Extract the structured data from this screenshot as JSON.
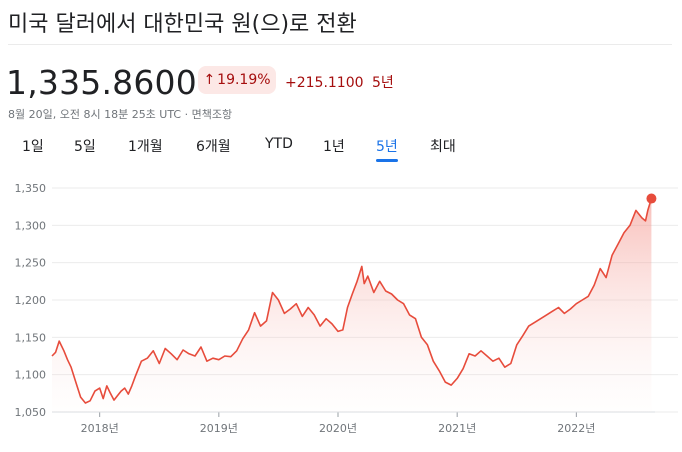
{
  "title": "미국 달러에서 대한민국 원(으)로 전환",
  "price": "1,335.8600",
  "percent_change": "19.19%",
  "percent_arrow_icon": "arrow-up-icon",
  "absolute_change": "+215.1100",
  "change_period": "5년",
  "timestamp": "8월 20일, 오전 8시 18분 25초 UTC · 면책조항",
  "tabs": [
    {
      "label": "1일"
    },
    {
      "label": "5일"
    },
    {
      "label": "1개월"
    },
    {
      "label": "6개월"
    },
    {
      "label": "YTD"
    },
    {
      "label": "1년"
    },
    {
      "label": "5년",
      "active": true
    },
    {
      "label": "최대"
    }
  ],
  "colors": {
    "line": "#e74c3c",
    "fill": "#fce8e6",
    "accent": "#1a73e8",
    "down": "#a50e0e"
  },
  "chart_data": {
    "type": "area",
    "title": "",
    "xlabel": "",
    "ylabel": "",
    "ylim": [
      1050,
      1350
    ],
    "yticks": [
      "1,350",
      "1,300",
      "1,250",
      "1,200",
      "1,150",
      "1,100",
      "1,050"
    ],
    "ytick_values": [
      1350,
      1300,
      1250,
      1200,
      1150,
      1100,
      1050
    ],
    "xticks": [
      "2018년",
      "2019년",
      "2020년",
      "2021년",
      "2022년"
    ],
    "xtick_values": [
      2018.0,
      2019.0,
      2020.0,
      2021.0,
      2022.0
    ],
    "grid": true,
    "series": [
      {
        "x": [
          2017.6,
          2017.63,
          2017.66,
          2017.7,
          2017.73,
          2017.76,
          2017.8,
          2017.84,
          2017.88,
          2017.92,
          2017.96,
          2018.0,
          2018.03,
          2018.06,
          2018.09,
          2018.12,
          2018.15,
          2018.18,
          2018.21,
          2018.24,
          2018.27,
          2018.3,
          2018.35,
          2018.4,
          2018.45,
          2018.5,
          2018.55,
          2018.6,
          2018.65,
          2018.7,
          2018.75,
          2018.8,
          2018.85,
          2018.9,
          2018.95,
          2019.0,
          2019.05,
          2019.1,
          2019.15,
          2019.2,
          2019.25,
          2019.3,
          2019.35,
          2019.4,
          2019.45,
          2019.5,
          2019.55,
          2019.6,
          2019.65,
          2019.7,
          2019.75,
          2019.8,
          2019.85,
          2019.9,
          2019.95,
          2020.0,
          2020.04,
          2020.08,
          2020.12,
          2020.16,
          2020.2,
          2020.22,
          2020.25,
          2020.3,
          2020.35,
          2020.4,
          2020.45,
          2020.5,
          2020.55,
          2020.6,
          2020.65,
          2020.7,
          2020.75,
          2020.8,
          2020.85,
          2020.9,
          2020.95,
          2021.0,
          2021.05,
          2021.1,
          2021.15,
          2021.2,
          2021.25,
          2021.3,
          2021.35,
          2021.4,
          2021.45,
          2021.5,
          2021.55,
          2021.6,
          2021.65,
          2021.7,
          2021.75,
          2021.8,
          2021.85,
          2021.9,
          2021.95,
          2022.0,
          2022.05,
          2022.1,
          2022.15,
          2022.2,
          2022.25,
          2022.3,
          2022.35,
          2022.4,
          2022.45,
          2022.5,
          2022.55,
          2022.58,
          2022.6,
          2022.63
        ],
        "values": [
          1125,
          1130,
          1145,
          1132,
          1120,
          1110,
          1090,
          1070,
          1062,
          1065,
          1078,
          1082,
          1068,
          1085,
          1075,
          1066,
          1072,
          1078,
          1082,
          1074,
          1085,
          1098,
          1118,
          1122,
          1132,
          1115,
          1135,
          1128,
          1120,
          1133,
          1128,
          1125,
          1137,
          1118,
          1122,
          1120,
          1125,
          1124,
          1132,
          1148,
          1160,
          1183,
          1165,
          1172,
          1210,
          1200,
          1182,
          1188,
          1195,
          1178,
          1190,
          1180,
          1165,
          1175,
          1168,
          1158,
          1160,
          1190,
          1208,
          1225,
          1245,
          1222,
          1232,
          1210,
          1225,
          1212,
          1208,
          1200,
          1195,
          1180,
          1175,
          1150,
          1140,
          1118,
          1105,
          1090,
          1086,
          1095,
          1108,
          1128,
          1125,
          1132,
          1125,
          1118,
          1122,
          1110,
          1115,
          1140,
          1152,
          1165,
          1170,
          1175,
          1180,
          1185,
          1190,
          1182,
          1188,
          1195,
          1200,
          1205,
          1220,
          1242,
          1230,
          1260,
          1275,
          1290,
          1300,
          1320,
          1310,
          1306,
          1320,
          1336
        ]
      }
    ],
    "last_point": {
      "x": 2022.63,
      "value": 1335.86
    }
  }
}
